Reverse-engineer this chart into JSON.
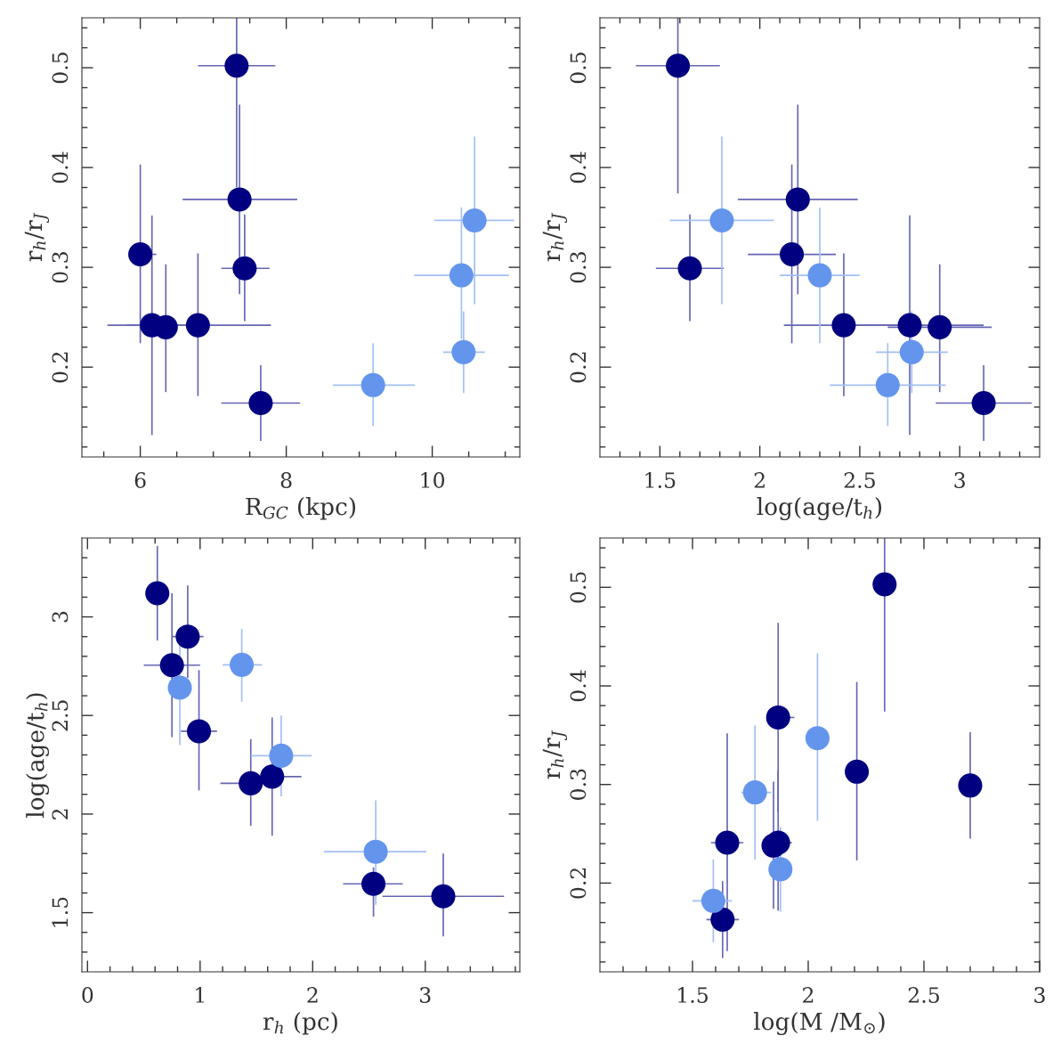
{
  "chart_data": [
    {
      "type": "scatter",
      "xlabel": "R$_{GC}$ (kpc)",
      "ylabel": "r$_{h}$/r$_{J}$",
      "marker": "circle",
      "grid": false,
      "xlim": [
        5.2,
        11.2
      ],
      "ylim": [
        0.11,
        0.55
      ],
      "xticks": [
        6,
        8,
        10,
        {
          "value": 5.5,
          "label": null
        },
        {
          "value": 6.5,
          "label": null
        },
        {
          "value": 7,
          "label": null
        },
        {
          "value": 7.5,
          "label": null
        },
        {
          "value": 8.5,
          "label": null
        },
        {
          "value": 9,
          "label": null
        },
        {
          "value": 9.5,
          "label": null
        },
        {
          "value": 10.5,
          "label": null
        },
        {
          "value": 11,
          "label": null
        }
      ],
      "yticks": [
        0.2,
        0.3,
        0.4,
        0.5,
        {
          "value": 0.12,
          "label": null
        },
        {
          "value": 0.14,
          "label": null
        },
        {
          "value": 0.16,
          "label": null
        },
        {
          "value": 0.18,
          "label": null
        },
        {
          "value": 0.22,
          "label": null
        },
        {
          "value": 0.24,
          "label": null
        },
        {
          "value": 0.26,
          "label": null
        },
        {
          "value": 0.28,
          "label": null
        },
        {
          "value": 0.32,
          "label": null
        },
        {
          "value": 0.34,
          "label": null
        },
        {
          "value": 0.36,
          "label": null
        },
        {
          "value": 0.38,
          "label": null
        },
        {
          "value": 0.42,
          "label": null
        },
        {
          "value": 0.44,
          "label": null
        },
        {
          "value": 0.46,
          "label": null
        },
        {
          "value": 0.48,
          "label": null
        },
        {
          "value": 0.52,
          "label": null
        },
        {
          "value": 0.54,
          "label": null
        }
      ],
      "series": [
        {
          "color": "#000080",
          "x": [
            7.32,
            7.36,
            7.43,
            6.0,
            6.16,
            6.35,
            6.79,
            7.65
          ],
          "values": [
            0.502,
            0.368,
            0.299,
            0.313,
            0.242,
            0.24,
            0.242,
            0.164
          ],
          "xerrors": [
            [
              6.79,
              7.85
            ],
            [
              6.58,
              8.15
            ],
            [
              7.11,
              7.77
            ],
            [
              5.85,
              6.22
            ],
            [
              5.55,
              6.62
            ],
            null,
            [
              5.81,
              7.79
            ],
            [
              7.11,
              8.19
            ]
          ],
          "errors": [
            [
              0.38,
              0.55
            ],
            [
              0.273,
              0.463
            ],
            [
              0.246,
              0.353
            ],
            [
              0.224,
              0.403
            ],
            [
              0.132,
              0.352
            ],
            [
              0.175,
              0.303
            ],
            [
              0.171,
              0.314
            ],
            [
              0.126,
              0.202
            ]
          ]
        },
        {
          "color": "#6495ed",
          "x": [
            9.19,
            10.43,
            10.4,
            10.58
          ],
          "values": [
            0.182,
            0.215,
            0.292,
            0.347
          ],
          "xerrors": [
            [
              8.64,
              9.76
            ],
            [
              10.15,
              10.72
            ],
            [
              9.75,
              11.05
            ],
            [
              10.03,
              11.12
            ]
          ],
          "errors": [
            [
              0.141,
              0.224
            ],
            [
              0.174,
              0.256
            ],
            [
              0.228,
              0.36
            ],
            [
              0.263,
              0.431
            ]
          ]
        }
      ]
    },
    {
      "type": "scatter",
      "xlabel": "log(age/t$_{h}$)",
      "ylabel": "r$_{h}$/r$_{J}$",
      "marker": "circle",
      "grid": false,
      "xlim": [
        1.2,
        3.4
      ],
      "ylim": [
        0.11,
        0.55
      ],
      "xticks": [
        1.5,
        2,
        2.5,
        3,
        {
          "value": 1.3,
          "label": null
        },
        {
          "value": 1.4,
          "label": null
        },
        {
          "value": 1.6,
          "label": null
        },
        {
          "value": 1.7,
          "label": null
        },
        {
          "value": 1.8,
          "label": null
        },
        {
          "value": 1.9,
          "label": null
        },
        {
          "value": 2.1,
          "label": null
        },
        {
          "value": 2.2,
          "label": null
        },
        {
          "value": 2.3,
          "label": null
        },
        {
          "value": 2.4,
          "label": null
        },
        {
          "value": 2.6,
          "label": null
        },
        {
          "value": 2.7,
          "label": null
        },
        {
          "value": 2.8,
          "label": null
        },
        {
          "value": 2.9,
          "label": null
        },
        {
          "value": 3.1,
          "label": null
        },
        {
          "value": 3.2,
          "label": null
        },
        {
          "value": 3.3,
          "label": null
        }
      ],
      "yticks": [
        0.2,
        0.3,
        0.4,
        0.5,
        {
          "value": 0.12,
          "label": null
        },
        {
          "value": 0.14,
          "label": null
        },
        {
          "value": 0.16,
          "label": null
        },
        {
          "value": 0.18,
          "label": null
        },
        {
          "value": 0.22,
          "label": null
        },
        {
          "value": 0.24,
          "label": null
        },
        {
          "value": 0.26,
          "label": null
        },
        {
          "value": 0.28,
          "label": null
        },
        {
          "value": 0.32,
          "label": null
        },
        {
          "value": 0.34,
          "label": null
        },
        {
          "value": 0.36,
          "label": null
        },
        {
          "value": 0.38,
          "label": null
        },
        {
          "value": 0.42,
          "label": null
        },
        {
          "value": 0.44,
          "label": null
        },
        {
          "value": 0.46,
          "label": null
        },
        {
          "value": 0.48,
          "label": null
        },
        {
          "value": 0.52,
          "label": null
        },
        {
          "value": 0.54,
          "label": null
        }
      ],
      "series": [
        {
          "color": "#000080",
          "x": [
            1.59,
            2.19,
            1.65,
            2.16,
            2.42,
            2.75,
            2.9,
            3.12
          ],
          "values": [
            0.502,
            0.368,
            0.299,
            0.313,
            0.242,
            0.242,
            0.24,
            0.164
          ],
          "xerrors": [
            [
              1.38,
              1.8
            ],
            [
              1.89,
              2.49
            ],
            [
              1.48,
              1.82
            ],
            [
              1.94,
              2.38
            ],
            [
              2.12,
              2.69
            ],
            [
              2.48,
              3.12
            ],
            [
              2.64,
              3.16
            ],
            [
              2.88,
              3.36
            ]
          ],
          "errors": [
            [
              0.374,
              0.55
            ],
            [
              0.273,
              0.463
            ],
            [
              0.246,
              0.353
            ],
            [
              0.224,
              0.403
            ],
            [
              0.171,
              0.314
            ],
            [
              0.132,
              0.352
            ],
            [
              0.175,
              0.303
            ],
            [
              0.126,
              0.202
            ]
          ]
        },
        {
          "color": "#6495ed",
          "x": [
            1.81,
            2.3,
            2.76,
            2.64
          ],
          "values": [
            0.347,
            0.292,
            0.215,
            0.182
          ],
          "xerrors": [
            [
              1.55,
              2.07
            ],
            [
              2.1,
              2.5
            ],
            [
              2.58,
              2.94
            ],
            [
              2.35,
              2.93
            ]
          ],
          "errors": [
            [
              0.263,
              0.431
            ],
            [
              0.224,
              0.36
            ],
            [
              0.174,
              0.256
            ],
            [
              0.141,
              0.224
            ]
          ]
        }
      ]
    },
    {
      "type": "scatter",
      "xlabel": "r$_{h}$ (pc)",
      "ylabel": "log(age/t$_{h}$)",
      "marker": "circle",
      "grid": false,
      "xlim": [
        -0.05,
        3.84
      ],
      "ylim": [
        1.2,
        3.4
      ],
      "xticks": [
        0,
        1,
        2,
        3,
        {
          "value": 0.2,
          "label": null
        },
        {
          "value": 0.4,
          "label": null
        },
        {
          "value": 0.6,
          "label": null
        },
        {
          "value": 0.8,
          "label": null
        },
        {
          "value": 1.2,
          "label": null
        },
        {
          "value": 1.4,
          "label": null
        },
        {
          "value": 1.6,
          "label": null
        },
        {
          "value": 1.8,
          "label": null
        },
        {
          "value": 2.2,
          "label": null
        },
        {
          "value": 2.4,
          "label": null
        },
        {
          "value": 2.6,
          "label": null
        },
        {
          "value": 2.8,
          "label": null
        },
        {
          "value": 3.2,
          "label": null
        },
        {
          "value": 3.4,
          "label": null
        },
        {
          "value": 3.6,
          "label": null
        },
        {
          "value": 3.8,
          "label": null
        }
      ],
      "yticks": [
        1.5,
        2,
        2.5,
        3,
        {
          "value": 1.3,
          "label": null
        },
        {
          "value": 1.4,
          "label": null
        },
        {
          "value": 1.6,
          "label": null
        },
        {
          "value": 1.7,
          "label": null
        },
        {
          "value": 1.8,
          "label": null
        },
        {
          "value": 1.9,
          "label": null
        },
        {
          "value": 2.1,
          "label": null
        },
        {
          "value": 2.2,
          "label": null
        },
        {
          "value": 2.3,
          "label": null
        },
        {
          "value": 2.4,
          "label": null
        },
        {
          "value": 2.6,
          "label": null
        },
        {
          "value": 2.7,
          "label": null
        },
        {
          "value": 2.8,
          "label": null
        },
        {
          "value": 2.9,
          "label": null
        },
        {
          "value": 3.1,
          "label": null
        },
        {
          "value": 3.2,
          "label": null
        },
        {
          "value": 3.3,
          "label": null
        }
      ],
      "series": [
        {
          "color": "#000080",
          "x": [
            0.62,
            0.89,
            0.75,
            0.99,
            1.45,
            1.64,
            2.54,
            3.16
          ],
          "values": [
            3.12,
            2.9,
            2.755,
            2.42,
            2.156,
            2.19,
            1.646,
            1.583
          ],
          "xerrors": [
            null,
            [
              0.75,
              1.03
            ],
            [
              0.5,
              1.0
            ],
            [
              0.83,
              1.15
            ],
            [
              1.18,
              1.55
            ],
            [
              1.52,
              1.9
            ],
            [
              2.27,
              2.8
            ],
            [
              2.62,
              3.7
            ]
          ],
          "errors": [
            [
              2.88,
              3.36
            ],
            [
              2.69,
              3.16
            ],
            [
              2.39,
              3.12
            ],
            [
              2.12,
              2.73
            ],
            [
              1.94,
              2.38
            ],
            [
              1.89,
              2.49
            ],
            [
              1.48,
              1.73
            ],
            [
              1.38,
              1.8
            ]
          ]
        },
        {
          "color": "#6495ed",
          "x": [
            0.82,
            1.37,
            1.72,
            2.56
          ],
          "values": [
            2.641,
            2.757,
            2.296,
            1.809
          ],
          "xerrors": [
            null,
            [
              1.2,
              1.55
            ],
            [
              1.45,
              1.99
            ],
            [
              2.1,
              3.01
            ]
          ],
          "errors": [
            [
              2.35,
              2.88
            ],
            [
              2.57,
              2.94
            ],
            [
              2.09,
              2.5
            ],
            [
              1.54,
              2.07
            ]
          ]
        }
      ]
    },
    {
      "type": "scatter",
      "xlabel": "log(M /M$_{⊙}$)",
      "ylabel": "r$_{h}$/r$_{J}$",
      "marker": "circle",
      "grid": false,
      "xlim": [
        1.1,
        3.0
      ],
      "ylim": [
        0.11,
        0.55
      ],
      "xticks": [
        1.5,
        2,
        2.5,
        3,
        {
          "value": 1.2,
          "label": null
        },
        {
          "value": 1.3,
          "label": null
        },
        {
          "value": 1.4,
          "label": null
        },
        {
          "value": 1.6,
          "label": null
        },
        {
          "value": 1.7,
          "label": null
        },
        {
          "value": 1.8,
          "label": null
        },
        {
          "value": 1.9,
          "label": null
        },
        {
          "value": 2.1,
          "label": null
        },
        {
          "value": 2.2,
          "label": null
        },
        {
          "value": 2.3,
          "label": null
        },
        {
          "value": 2.4,
          "label": null
        },
        {
          "value": 2.6,
          "label": null
        },
        {
          "value": 2.7,
          "label": null
        },
        {
          "value": 2.8,
          "label": null
        },
        {
          "value": 2.9,
          "label": null
        }
      ],
      "yticks": [
        0.2,
        0.3,
        0.4,
        0.5,
        {
          "value": 0.12,
          "label": null
        },
        {
          "value": 0.14,
          "label": null
        },
        {
          "value": 0.16,
          "label": null
        },
        {
          "value": 0.18,
          "label": null
        },
        {
          "value": 0.22,
          "label": null
        },
        {
          "value": 0.24,
          "label": null
        },
        {
          "value": 0.26,
          "label": null
        },
        {
          "value": 0.28,
          "label": null
        },
        {
          "value": 0.32,
          "label": null
        },
        {
          "value": 0.34,
          "label": null
        },
        {
          "value": 0.36,
          "label": null
        },
        {
          "value": 0.38,
          "label": null
        },
        {
          "value": 0.42,
          "label": null
        },
        {
          "value": 0.44,
          "label": null
        },
        {
          "value": 0.46,
          "label": null
        },
        {
          "value": 0.48,
          "label": null
        },
        {
          "value": 0.52,
          "label": null
        },
        {
          "value": 0.54,
          "label": null
        }
      ],
      "series": [
        {
          "color": "#000080",
          "x": [
            2.33,
            1.87,
            2.7,
            2.21,
            1.65,
            1.87,
            1.85,
            1.63
          ],
          "values": [
            0.503,
            0.368,
            0.299,
            0.313,
            0.241,
            0.241,
            0.238,
            0.163
          ],
          "xerrors": [
            null,
            [
              1.82,
              1.94
            ],
            null,
            null,
            [
              1.58,
              1.72
            ],
            [
              1.8,
              1.93
            ],
            null,
            [
              1.56,
              1.7
            ]
          ],
          "errors": [
            [
              0.374,
              0.55
            ],
            [
              0.272,
              0.464
            ],
            [
              0.245,
              0.353
            ],
            [
              0.223,
              0.404
            ],
            [
              0.131,
              0.352
            ],
            [
              0.172,
              0.314
            ],
            [
              0.174,
              0.303
            ],
            [
              0.124,
              0.202
            ]
          ]
        },
        {
          "color": "#6495ed",
          "x": [
            2.04,
            1.77,
            1.88,
            1.59
          ],
          "values": [
            0.347,
            0.292,
            0.214,
            0.182
          ],
          "xerrors": [
            null,
            [
              1.71,
              1.84
            ],
            null,
            [
              1.5,
              1.67
            ]
          ],
          "errors": [
            [
              0.263,
              0.433
            ],
            [
              0.224,
              0.36
            ],
            [
              0.171,
              0.257
            ],
            [
              0.14,
              0.224
            ]
          ]
        }
      ]
    }
  ]
}
